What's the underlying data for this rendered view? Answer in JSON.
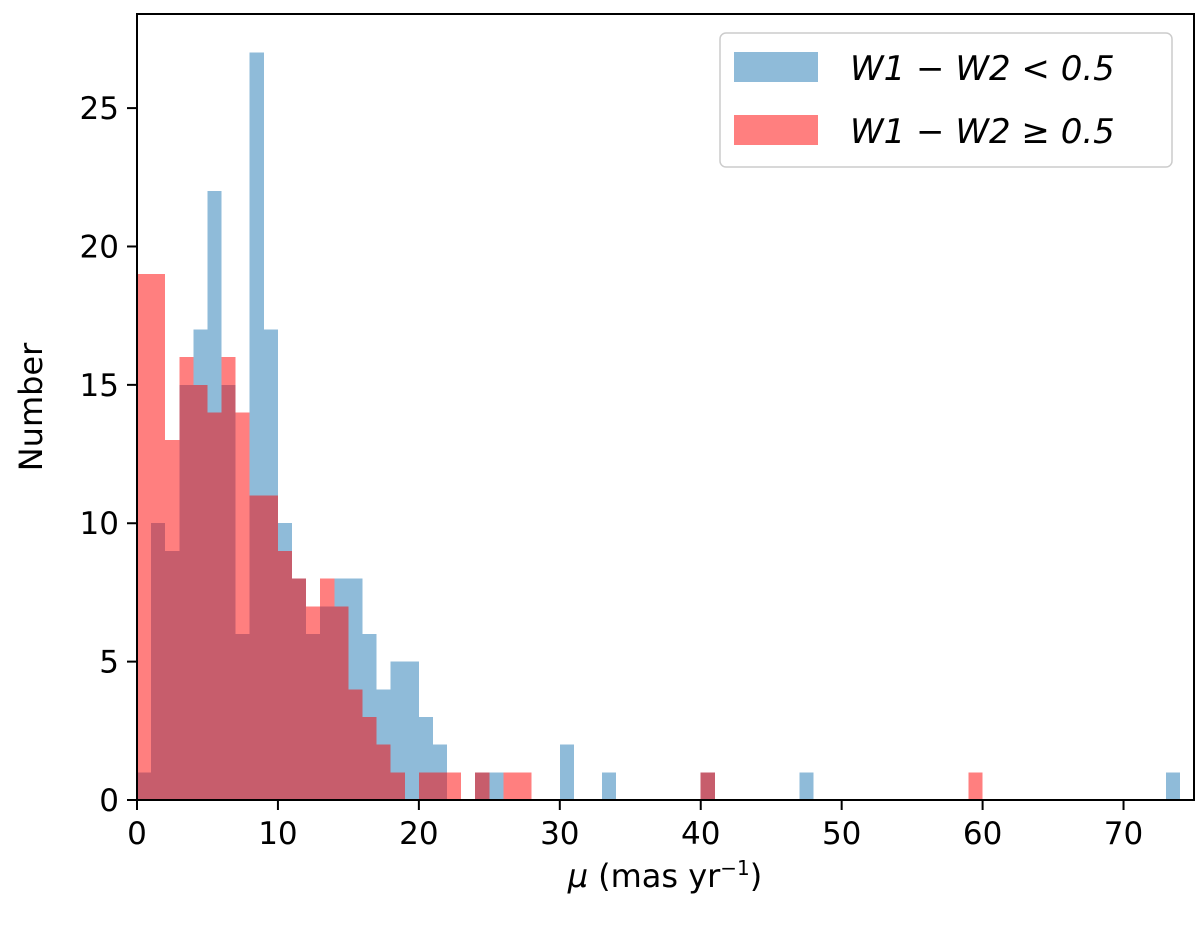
{
  "chart_data": {
    "type": "bar",
    "xlabel_symbol": "μ",
    "xlabel_units": "(mas yr",
    "xlabel_exp": "−1",
    "xlabel_close": ")",
    "ylabel": "Number",
    "xlim": [
      0,
      75
    ],
    "ylim": [
      0,
      28.4
    ],
    "xticks": [
      "0",
      "10",
      "20",
      "30",
      "40",
      "50",
      "60",
      "70"
    ],
    "yticks": [
      "0",
      "5",
      "10",
      "15",
      "20",
      "25"
    ],
    "xtick_values": [
      0,
      10,
      20,
      30,
      40,
      50,
      60,
      70
    ],
    "ytick_values": [
      0,
      5,
      10,
      15,
      20,
      25
    ],
    "bin_width": 1,
    "bin_start": 0,
    "grid": false,
    "legend_position": "top-right",
    "series": [
      {
        "name": "W1 − W2 < 0.5",
        "color": "#1f77b4",
        "opacity": 0.5,
        "values": [
          1,
          10,
          9,
          15,
          17,
          22,
          15,
          6,
          27,
          17,
          10,
          8,
          6,
          7,
          8,
          8,
          6,
          4,
          5,
          5,
          3,
          2,
          0,
          0,
          1,
          1,
          0,
          0,
          0,
          0,
          2,
          0,
          0,
          1,
          0,
          0,
          0,
          0,
          0,
          0,
          1,
          0,
          0,
          0,
          0,
          0,
          0,
          1,
          0,
          0,
          0,
          0,
          0,
          0,
          0,
          0,
          0,
          0,
          0,
          0,
          0,
          0,
          0,
          0,
          0,
          0,
          0,
          0,
          0,
          0,
          0,
          0,
          0,
          1
        ]
      },
      {
        "name": "W1 − W2 ≥ 0.5",
        "color": "#ff0000",
        "opacity": 0.5,
        "values": [
          19,
          19,
          13,
          16,
          15,
          14,
          16,
          14,
          11,
          11,
          9,
          8,
          7,
          8,
          7,
          4,
          3,
          2,
          1,
          0,
          1,
          1,
          1,
          0,
          1,
          0,
          1,
          1,
          0,
          0,
          0,
          0,
          0,
          0,
          0,
          0,
          0,
          0,
          0,
          0,
          1,
          0,
          0,
          0,
          0,
          0,
          0,
          0,
          0,
          0,
          0,
          0,
          0,
          0,
          0,
          0,
          0,
          0,
          0,
          1,
          0,
          0,
          0,
          0,
          0,
          0,
          0,
          0,
          0,
          0,
          0,
          0,
          0,
          0
        ]
      }
    ]
  }
}
